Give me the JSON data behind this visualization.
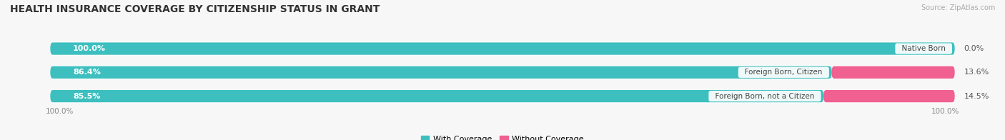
{
  "title": "HEALTH INSURANCE COVERAGE BY CITIZENSHIP STATUS IN GRANT",
  "source": "Source: ZipAtlas.com",
  "categories": [
    "Native Born",
    "Foreign Born, Citizen",
    "Foreign Born, not a Citizen"
  ],
  "with_coverage": [
    100.0,
    86.4,
    85.5
  ],
  "without_coverage": [
    0.0,
    13.6,
    14.5
  ],
  "color_with": "#3dbfbf",
  "color_without": "#f06090",
  "color_track": "#e8e8ea",
  "bg_color": "#f7f7f7",
  "title_fontsize": 10,
  "label_fontsize": 8,
  "tick_fontsize": 7.5,
  "legend_fontsize": 8,
  "source_fontsize": 7,
  "left_label": "100.0%",
  "right_label": "100.0%"
}
